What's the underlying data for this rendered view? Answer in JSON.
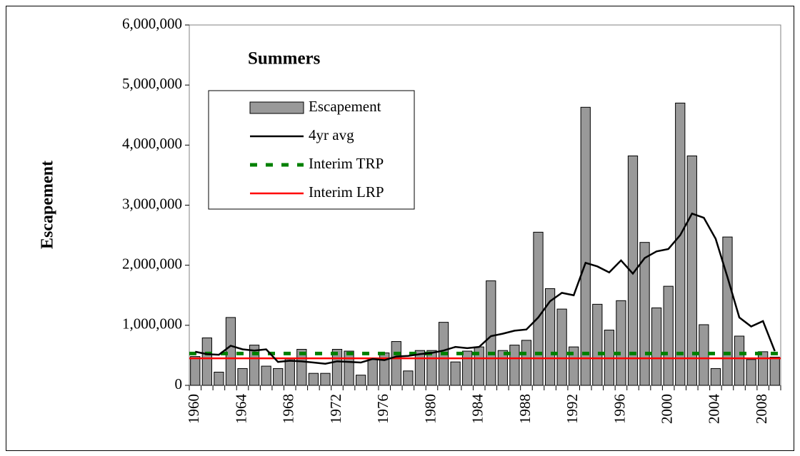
{
  "chart_data": {
    "type": "bar",
    "title": "Summers",
    "y_label": "Escapement",
    "legend": "upper left",
    "categories": [
      "1960",
      null,
      null,
      null,
      "1964",
      null,
      null,
      null,
      "1968",
      null,
      null,
      null,
      "1972",
      null,
      null,
      null,
      "1976",
      null,
      null,
      null,
      "1980",
      null,
      null,
      null,
      "1984",
      null,
      null,
      null,
      "1988",
      null,
      null,
      null,
      "1992",
      null,
      null,
      null,
      "1996",
      null,
      null,
      null,
      "2000",
      null,
      null,
      null,
      "2004",
      null,
      null,
      null,
      "2008",
      null
    ],
    "series": [
      {
        "name": "Escapement",
        "type": "bar",
        "color": "#999999",
        "values": [
          480000,
          790000,
          220000,
          1130000,
          280000,
          670000,
          320000,
          280000,
          440000,
          600000,
          200000,
          200000,
          600000,
          570000,
          170000,
          430000,
          540000,
          730000,
          240000,
          580000,
          580000,
          1050000,
          390000,
          570000,
          640000,
          1740000,
          580000,
          670000,
          750000,
          2550000,
          1610000,
          1270000,
          640000,
          4630000,
          1350000,
          920000,
          1410000,
          3820000,
          2380000,
          1290000,
          1650000,
          4700000,
          3820000,
          1010000,
          280000,
          2470000,
          820000,
          430000,
          560000,
          470000
        ]
      },
      {
        "name": "4yr avg",
        "type": "line",
        "color": "#000000",
        "values": [
          560000,
          520000,
          510000,
          660000,
          600000,
          580000,
          600000,
          390000,
          410000,
          400000,
          380000,
          360000,
          400000,
          390000,
          380000,
          440000,
          420000,
          480000,
          490000,
          520000,
          540000,
          580000,
          640000,
          620000,
          640000,
          820000,
          860000,
          910000,
          930000,
          1130000,
          1400000,
          1540000,
          1500000,
          2040000,
          1980000,
          1880000,
          2080000,
          1860000,
          2120000,
          2230000,
          2270000,
          2500000,
          2860000,
          2790000,
          2440000,
          1800000,
          1130000,
          980000,
          1070000,
          570000
        ]
      },
      {
        "name": "Interim TRP",
        "type": "hline",
        "color": "#008000",
        "dashed": true,
        "value": 530000
      },
      {
        "name": "Interim LRP",
        "type": "hline",
        "color": "#ff0000",
        "value": 450000
      }
    ],
    "ylim": [
      0,
      6000000
    ],
    "yticks": [
      0,
      {
        "value": 1000000,
        "label": "1,000,000"
      },
      {
        "value": 2000000,
        "label": "2,000,000"
      },
      {
        "value": 3000000,
        "label": "3,000,000"
      },
      {
        "value": 4000000,
        "label": "4,000,000"
      },
      {
        "value": 5000000,
        "label": "5,000,000"
      },
      {
        "value": 6000000,
        "label": "6,000,000"
      }
    ]
  }
}
